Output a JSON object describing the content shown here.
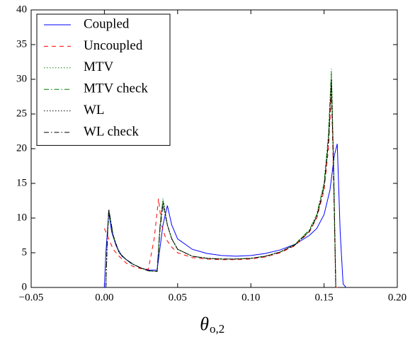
{
  "chart_data": {
    "type": "line",
    "xlabel_symbol": "θ",
    "xlabel_subscript": "o,2",
    "xlim": [
      -0.05,
      0.2
    ],
    "ylim": [
      0,
      40
    ],
    "xticks": [
      {
        "value": -0.05,
        "label": "−0.05"
      },
      {
        "value": 0,
        "label": "0.00"
      },
      0.05,
      {
        "value": 0.1,
        "label": "0.10"
      },
      0.15,
      {
        "value": 0.2,
        "label": "0.20"
      }
    ],
    "yticks": [
      0,
      5,
      10,
      15,
      20,
      25,
      30,
      35,
      40
    ],
    "legend": "upper-left",
    "series": [
      {
        "name": "Coupled",
        "color": "#0000ff",
        "linestyle": "solid",
        "x": [
          0.0,
          0.001,
          0.003,
          0.005,
          0.008,
          0.012,
          0.018,
          0.025,
          0.03,
          0.036,
          0.04,
          0.043,
          0.046,
          0.05,
          0.06,
          0.07,
          0.08,
          0.09,
          0.1,
          0.11,
          0.12,
          0.13,
          0.14,
          0.145,
          0.15,
          0.154,
          0.157,
          0.159,
          0.161,
          0.163,
          0.165
        ],
        "values": [
          0,
          5,
          10.8,
          8,
          6,
          4.5,
          3.5,
          2.8,
          2.5,
          2.5,
          9,
          11.8,
          9,
          7,
          5.5,
          4.9,
          4.6,
          4.5,
          4.6,
          4.9,
          5.4,
          6.2,
          7.5,
          8.5,
          10.5,
          14,
          19,
          20.7,
          8,
          0.5,
          0
        ]
      },
      {
        "name": "Uncoupled",
        "color": "#ff0000",
        "linestyle": "dashed",
        "x": [
          0.0,
          0.003,
          0.006,
          0.01,
          0.015,
          0.02,
          0.025,
          0.03,
          0.034,
          0.037,
          0.039,
          0.042,
          0.046,
          0.05,
          0.06,
          0.07,
          0.08,
          0.09,
          0.1,
          0.11,
          0.12,
          0.13,
          0.14,
          0.145,
          0.15,
          0.153,
          0.155,
          0.156,
          0.158,
          0.16
        ],
        "values": [
          8.5,
          7,
          5.5,
          4.5,
          3.5,
          3,
          2.7,
          2.6,
          7,
          12.8,
          9,
          7,
          5.8,
          5,
          4.3,
          4.1,
          4,
          4,
          4.1,
          4.4,
          5,
          6,
          8,
          10,
          14,
          20,
          28,
          20,
          0,
          0
        ]
      },
      {
        "name": "MTV",
        "color": "#008000",
        "linestyle": "dotted",
        "x": [
          0.001,
          0.002,
          0.003,
          0.006,
          0.01,
          0.015,
          0.02,
          0.025,
          0.03,
          0.036,
          0.038,
          0.04,
          0.043,
          0.046,
          0.05,
          0.06,
          0.07,
          0.08,
          0.09,
          0.1,
          0.11,
          0.12,
          0.13,
          0.14,
          0.145,
          0.15,
          0.153,
          0.155,
          0.1565,
          0.158
        ],
        "values": [
          0,
          7,
          11.2,
          7.5,
          5,
          4,
          3.3,
          2.8,
          2.4,
          2.3,
          9,
          12.8,
          9,
          7,
          5.5,
          4.5,
          4.2,
          4.1,
          4.1,
          4.2,
          4.5,
          5.1,
          6.2,
          8.3,
          10.5,
          15,
          22,
          31.5,
          18,
          0
        ]
      },
      {
        "name": "MTV check",
        "color": "#008000",
        "linestyle": "dashdot",
        "x": [
          0.001,
          0.002,
          0.003,
          0.006,
          0.01,
          0.015,
          0.02,
          0.025,
          0.03,
          0.036,
          0.038,
          0.04,
          0.043,
          0.046,
          0.05,
          0.06,
          0.07,
          0.08,
          0.09,
          0.1,
          0.11,
          0.12,
          0.13,
          0.14,
          0.145,
          0.15,
          0.153,
          0.155,
          0.1565,
          0.158
        ],
        "values": [
          0,
          7,
          11,
          7.4,
          5,
          4,
          3.3,
          2.8,
          2.4,
          2.3,
          9,
          12.6,
          9,
          7,
          5.5,
          4.5,
          4.2,
          4.1,
          4.1,
          4.2,
          4.5,
          5.1,
          6.2,
          8.3,
          10.5,
          15,
          22,
          31,
          18,
          0
        ]
      },
      {
        "name": "WL",
        "color": "#000000",
        "linestyle": "dotted",
        "x": [
          0.001,
          0.002,
          0.003,
          0.006,
          0.01,
          0.015,
          0.02,
          0.025,
          0.03,
          0.036,
          0.038,
          0.04,
          0.043,
          0.046,
          0.05,
          0.06,
          0.07,
          0.08,
          0.09,
          0.1,
          0.11,
          0.12,
          0.13,
          0.14,
          0.145,
          0.15,
          0.153,
          0.155,
          0.1565,
          0.158
        ],
        "values": [
          0,
          7,
          11.3,
          7.5,
          5,
          4,
          3.3,
          2.8,
          2.4,
          2.3,
          8.5,
          12.3,
          9,
          7,
          5.5,
          4.5,
          4.2,
          4.1,
          4.1,
          4.2,
          4.5,
          5.1,
          6.1,
          8.1,
          10.2,
          14.5,
          21,
          30,
          17,
          0
        ]
      },
      {
        "name": "WL check",
        "color": "#000000",
        "linestyle": "dashdot",
        "x": [
          0.001,
          0.002,
          0.003,
          0.006,
          0.01,
          0.015,
          0.02,
          0.025,
          0.03,
          0.036,
          0.038,
          0.04,
          0.043,
          0.046,
          0.05,
          0.06,
          0.07,
          0.08,
          0.09,
          0.1,
          0.11,
          0.12,
          0.13,
          0.14,
          0.145,
          0.15,
          0.153,
          0.155,
          0.1565,
          0.158
        ],
        "values": [
          0,
          7,
          11.2,
          7.5,
          5,
          4,
          3.3,
          2.8,
          2.4,
          2.3,
          8.5,
          12,
          9,
          7,
          5.5,
          4.5,
          4.2,
          4.1,
          4.1,
          4.2,
          4.5,
          5.1,
          6.1,
          8.1,
          10.2,
          14.5,
          21,
          29.5,
          17,
          0
        ]
      }
    ]
  }
}
